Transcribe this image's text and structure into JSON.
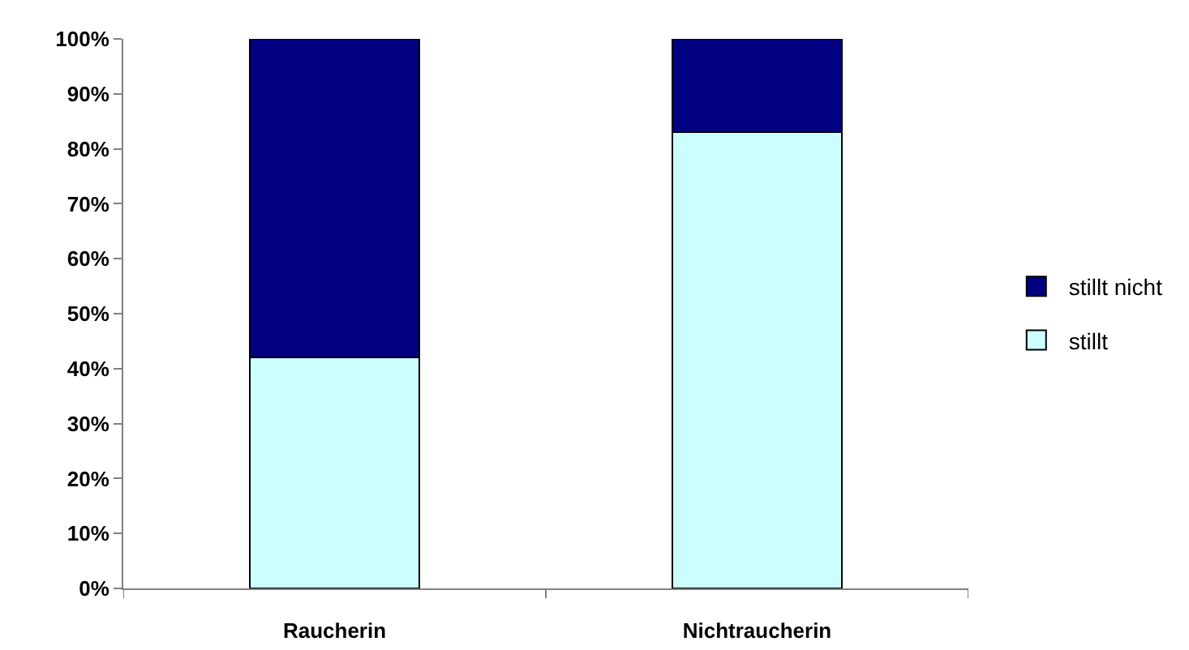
{
  "chart_data": {
    "type": "bar",
    "stacked": true,
    "categories": [
      "Raucherin",
      "Nichtraucherin"
    ],
    "series": [
      {
        "name": "stillt",
        "color": "#ccffff",
        "values": [
          42,
          83
        ]
      },
      {
        "name": "stillt nicht",
        "color": "#000080",
        "values": [
          58,
          17
        ]
      }
    ],
    "ylim": [
      0,
      100
    ],
    "yticks": [
      {
        "value": 0,
        "label": "0%"
      },
      {
        "value": 10,
        "label": "10%"
      },
      {
        "value": 20,
        "label": "20%"
      },
      {
        "value": 30,
        "label": "30%"
      },
      {
        "value": 40,
        "label": "40%"
      },
      {
        "value": 50,
        "label": "50%"
      },
      {
        "value": 60,
        "label": "60%"
      },
      {
        "value": 70,
        "label": "70%"
      },
      {
        "value": 80,
        "label": "80%"
      },
      {
        "value": 90,
        "label": "90%"
      },
      {
        "value": 100,
        "label": "100%"
      }
    ],
    "legend": "right"
  }
}
